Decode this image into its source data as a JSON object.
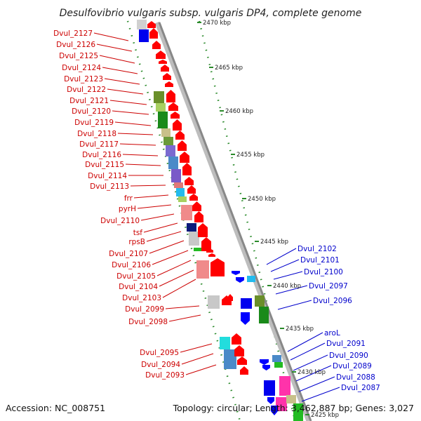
{
  "title": "Desulfovibrio vulgaris subsp. vulgaris DP4, complete genome",
  "footer": {
    "accession": "Accession: NC_008751",
    "summary": "Topology: circular; Length: 3,462,887 bp; Genes: 3,027"
  },
  "scale_labels": [
    "2470 kbp",
    "2465 kbp",
    "2460 kbp",
    "2455 kbp",
    "2450 kbp",
    "2445 kbp",
    "2440 kbp",
    "2435 kbp",
    "2430 kbp",
    "2425 kbp"
  ],
  "genes_left": [
    "Dvul_2127",
    "Dvul_2126",
    "Dvul_2125",
    "Dvul_2124",
    "Dvul_2123",
    "Dvul_2122",
    "Dvul_2121",
    "Dvul_2120",
    "Dvul_2119",
    "Dvul_2118",
    "Dvul_2117",
    "Dvul_2116",
    "Dvul_2115",
    "Dvul_2114",
    "Dvul_2113",
    "frr",
    "pyrH",
    "Dvul_2110",
    "tsf",
    "rpsB",
    "Dvul_2107",
    "Dvul_2106",
    "Dvul_2105",
    "Dvul_2104",
    "Dvul_2103",
    "Dvul_2099",
    "Dvul_2098",
    "Dvul_2095",
    "Dvul_2094",
    "Dvul_2093"
  ],
  "genes_right": [
    "Dvul_2102",
    "Dvul_2101",
    "Dvul_2100",
    "Dvul_2097",
    "Dvul_2096",
    "aroL",
    "Dvul_2091",
    "Dvul_2090",
    "Dvul_2089",
    "Dvul_2088",
    "Dvul_2087"
  ],
  "colors": {
    "forward_label": "#cc0000",
    "reverse_label": "#0000cc",
    "forward_arrow": "#ff0000",
    "reverse_arrow": "#0000ff",
    "backbone": "#888888",
    "scale_tick": "#2a8a2a"
  }
}
